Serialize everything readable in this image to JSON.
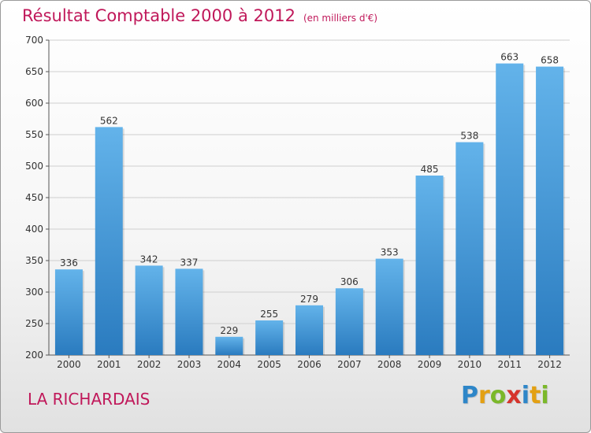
{
  "chart_data": {
    "type": "bar",
    "title": "Résultat Comptable 2000 à 2012",
    "subtitle": "(en milliers d'€)",
    "categories": [
      "2000",
      "2001",
      "2002",
      "2003",
      "2004",
      "2005",
      "2006",
      "2007",
      "2008",
      "2009",
      "2010",
      "2011",
      "2012"
    ],
    "values": [
      336,
      562,
      342,
      337,
      229,
      255,
      279,
      306,
      353,
      485,
      538,
      663,
      658
    ],
    "ylim": [
      200,
      700
    ],
    "yticks": [
      200,
      250,
      300,
      350,
      400,
      450,
      500,
      550,
      600,
      650,
      700
    ],
    "grid": true,
    "xlabel": "",
    "ylabel": "",
    "bar_color": "#4a9fdd",
    "bar_color_light": "#63b3ea",
    "bar_color_dark": "#2a7bbf"
  },
  "footer": {
    "location": "LA RICHARDAIS",
    "logo_letters": [
      "P",
      "r",
      "o",
      "x",
      "i",
      "t",
      "i"
    ],
    "logo_colors": [
      "#2e86c8",
      "#e3a013",
      "#7bb82a",
      "#d6342c",
      "#2e86c8",
      "#e3a013",
      "#7bb82a"
    ]
  }
}
